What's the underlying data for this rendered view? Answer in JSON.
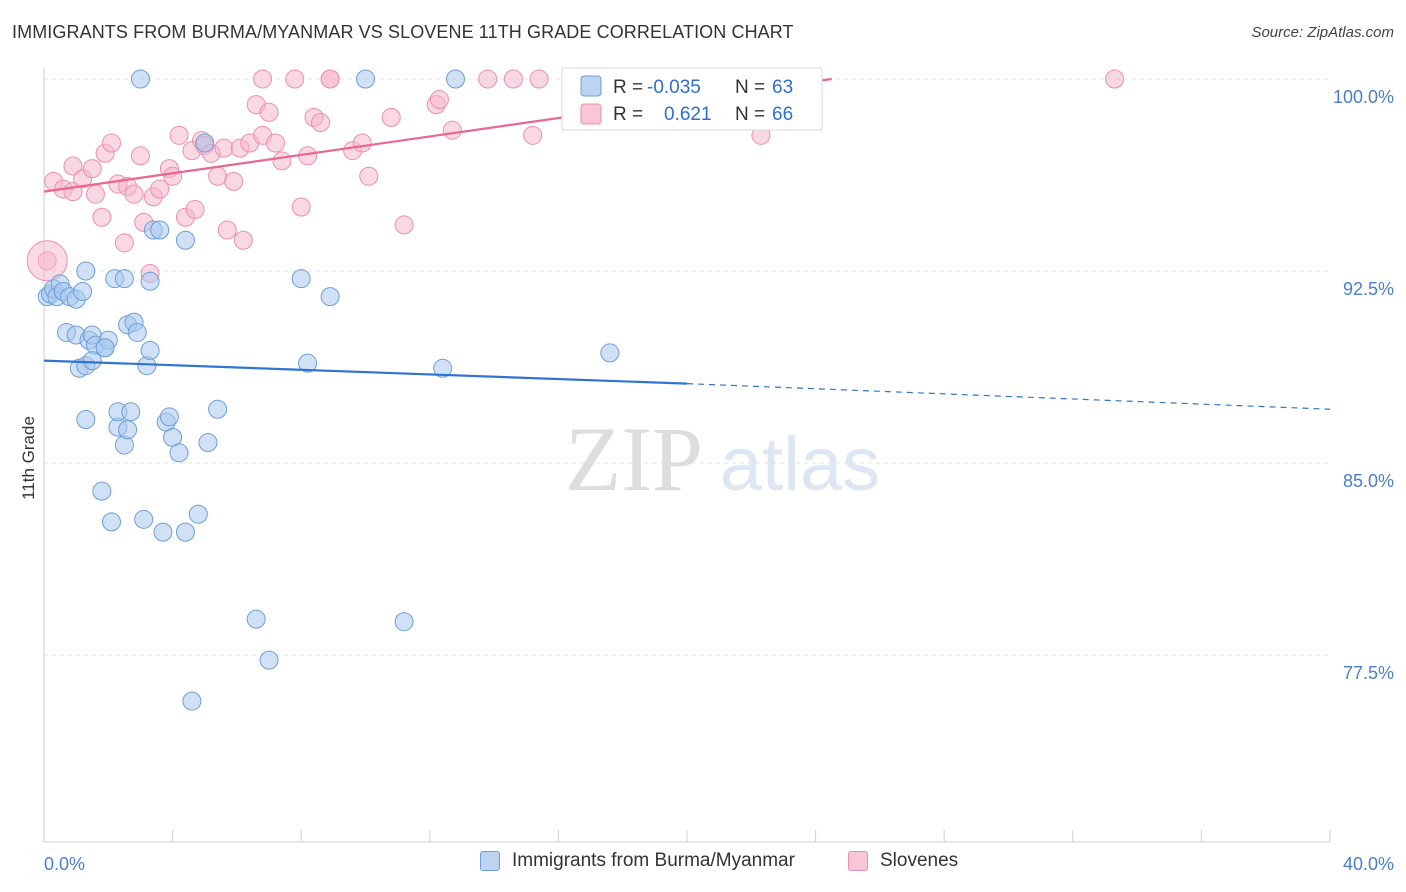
{
  "header": {
    "title": "IMMIGRANTS FROM BURMA/MYANMAR VS SLOVENE 11TH GRADE CORRELATION CHART",
    "source": "Source: ZipAtlas.com"
  },
  "watermark": {
    "zip": "ZIP",
    "atlas": "atlas"
  },
  "colors": {
    "blue_fill": "#a9c8ee",
    "blue_stroke": "#6a9fd8",
    "blue_line": "#2f74d0",
    "pink_fill": "#f6b8cb",
    "pink_stroke": "#ec8fae",
    "pink_line": "#e8668f",
    "axis_text": "#4a7fc8",
    "grid": "#e3e3e3"
  },
  "chart_data": {
    "type": "scatter",
    "title": "IMMIGRANTS FROM BURMA/MYANMAR VS SLOVENE 11TH GRADE CORRELATION CHART",
    "xlabel": "",
    "ylabel": "11th Grade",
    "xlim": [
      0,
      40
    ],
    "ylim": [
      70.5,
      102
    ],
    "x_tick_labels": [
      {
        "value": 0,
        "label": "0.0%"
      },
      {
        "value": 40,
        "label": "40.0%"
      }
    ],
    "y_tick_labels": [
      {
        "value": 100,
        "label": "100.0%"
      },
      {
        "value": 92.5,
        "label": "92.5%"
      },
      {
        "value": 85,
        "label": "85.0%"
      },
      {
        "value": 77.5,
        "label": "77.5%"
      }
    ],
    "grid": true,
    "legend_position": "top-center",
    "series": [
      {
        "name": "Immigrants from Burma/Myanmar",
        "r_label": "R =",
        "r_value": "-0.035",
        "n_label": "N =",
        "n_value": "63",
        "trend": {
          "x": [
            0,
            20
          ],
          "y": [
            89.0,
            88.1
          ],
          "dashed_to": [
            40,
            87.1
          ]
        },
        "points": [
          [
            0.1,
            91.5
          ],
          [
            0.2,
            91.6
          ],
          [
            0.3,
            91.8
          ],
          [
            0.4,
            91.5
          ],
          [
            0.5,
            92.0
          ],
          [
            0.6,
            91.7
          ],
          [
            0.8,
            91.5
          ],
          [
            1.0,
            91.4
          ],
          [
            1.2,
            91.7
          ],
          [
            0.7,
            90.1
          ],
          [
            1.0,
            90.0
          ],
          [
            1.4,
            89.8
          ],
          [
            1.5,
            90.0
          ],
          [
            1.6,
            89.6
          ],
          [
            1.9,
            89.5
          ],
          [
            1.1,
            88.7
          ],
          [
            1.3,
            88.8
          ],
          [
            1.5,
            89.0
          ],
          [
            2.0,
            89.8
          ],
          [
            2.6,
            90.4
          ],
          [
            2.8,
            90.5
          ],
          [
            2.9,
            90.1
          ],
          [
            3.2,
            88.8
          ],
          [
            3.3,
            89.4
          ],
          [
            1.3,
            92.5
          ],
          [
            2.2,
            92.2
          ],
          [
            2.5,
            92.2
          ],
          [
            3.3,
            92.1
          ],
          [
            3.4,
            94.1
          ],
          [
            3.6,
            94.1
          ],
          [
            4.4,
            93.7
          ],
          [
            5.0,
            97.5
          ],
          [
            3.0,
            100.0
          ],
          [
            10.0,
            100.0
          ],
          [
            12.8,
            100.0
          ],
          [
            8.0,
            92.2
          ],
          [
            8.9,
            91.5
          ],
          [
            8.2,
            88.9
          ],
          [
            12.4,
            88.7
          ],
          [
            17.6,
            89.3
          ],
          [
            1.3,
            86.7
          ],
          [
            2.3,
            86.4
          ],
          [
            2.3,
            87.0
          ],
          [
            2.7,
            87.0
          ],
          [
            2.5,
            85.7
          ],
          [
            2.6,
            86.3
          ],
          [
            3.8,
            86.6
          ],
          [
            3.9,
            86.8
          ],
          [
            4.0,
            86.0
          ],
          [
            4.2,
            85.4
          ],
          [
            5.1,
            85.8
          ],
          [
            5.4,
            87.1
          ],
          [
            1.8,
            83.9
          ],
          [
            2.1,
            82.7
          ],
          [
            3.1,
            82.8
          ],
          [
            3.7,
            82.3
          ],
          [
            4.4,
            82.3
          ],
          [
            4.8,
            83.0
          ],
          [
            6.6,
            78.9
          ],
          [
            7.0,
            77.3
          ],
          [
            11.2,
            78.8
          ],
          [
            4.6,
            75.7
          ],
          [
            1.9,
            89.5
          ]
        ]
      },
      {
        "name": "Slovenes",
        "r_label": "R =",
        "r_value": "0.621",
        "n_label": "N =",
        "n_value": "66",
        "trend": {
          "x": [
            0,
            24.5
          ],
          "y": [
            95.6,
            100.0
          ]
        },
        "points": [
          [
            0.1,
            92.9
          ],
          [
            0.3,
            96.0
          ],
          [
            0.6,
            95.7
          ],
          [
            0.9,
            95.6
          ],
          [
            0.9,
            96.6
          ],
          [
            1.2,
            96.1
          ],
          [
            1.5,
            96.5
          ],
          [
            1.6,
            95.5
          ],
          [
            1.8,
            94.6
          ],
          [
            1.9,
            97.1
          ],
          [
            2.1,
            97.5
          ],
          [
            2.3,
            95.9
          ],
          [
            2.5,
            93.6
          ],
          [
            2.6,
            95.8
          ],
          [
            2.8,
            95.5
          ],
          [
            3.0,
            97.0
          ],
          [
            3.1,
            94.4
          ],
          [
            3.3,
            92.4
          ],
          [
            3.4,
            95.4
          ],
          [
            3.6,
            95.7
          ],
          [
            3.9,
            96.5
          ],
          [
            4.0,
            96.2
          ],
          [
            4.2,
            97.8
          ],
          [
            4.4,
            94.6
          ],
          [
            4.6,
            97.2
          ],
          [
            4.7,
            94.9
          ],
          [
            4.9,
            97.6
          ],
          [
            5.0,
            97.4
          ],
          [
            5.2,
            97.1
          ],
          [
            5.4,
            96.2
          ],
          [
            5.6,
            97.3
          ],
          [
            5.7,
            94.1
          ],
          [
            5.9,
            96.0
          ],
          [
            6.1,
            97.3
          ],
          [
            6.2,
            93.7
          ],
          [
            6.4,
            97.5
          ],
          [
            6.6,
            99.0
          ],
          [
            6.8,
            97.8
          ],
          [
            7.0,
            98.7
          ],
          [
            7.2,
            97.5
          ],
          [
            7.4,
            96.8
          ],
          [
            7.8,
            100.0
          ],
          [
            8.0,
            95.0
          ],
          [
            8.2,
            97.0
          ],
          [
            8.4,
            98.5
          ],
          [
            8.6,
            98.3
          ],
          [
            8.9,
            100.0
          ],
          [
            9.6,
            97.2
          ],
          [
            9.9,
            97.5
          ],
          [
            10.1,
            96.2
          ],
          [
            10.8,
            98.5
          ],
          [
            11.2,
            94.3
          ],
          [
            12.2,
            99.0
          ],
          [
            12.3,
            99.2
          ],
          [
            12.7,
            98.0
          ],
          [
            13.8,
            100.0
          ],
          [
            14.6,
            100.0
          ],
          [
            15.2,
            97.8
          ],
          [
            15.4,
            100.0
          ],
          [
            16.4,
            100.0
          ],
          [
            21.5,
            100.0
          ],
          [
            22.3,
            97.8
          ],
          [
            23.1,
            100.0
          ],
          [
            33.3,
            100.0
          ],
          [
            6.8,
            100.0
          ],
          [
            8.9,
            100.0
          ]
        ]
      }
    ]
  }
}
